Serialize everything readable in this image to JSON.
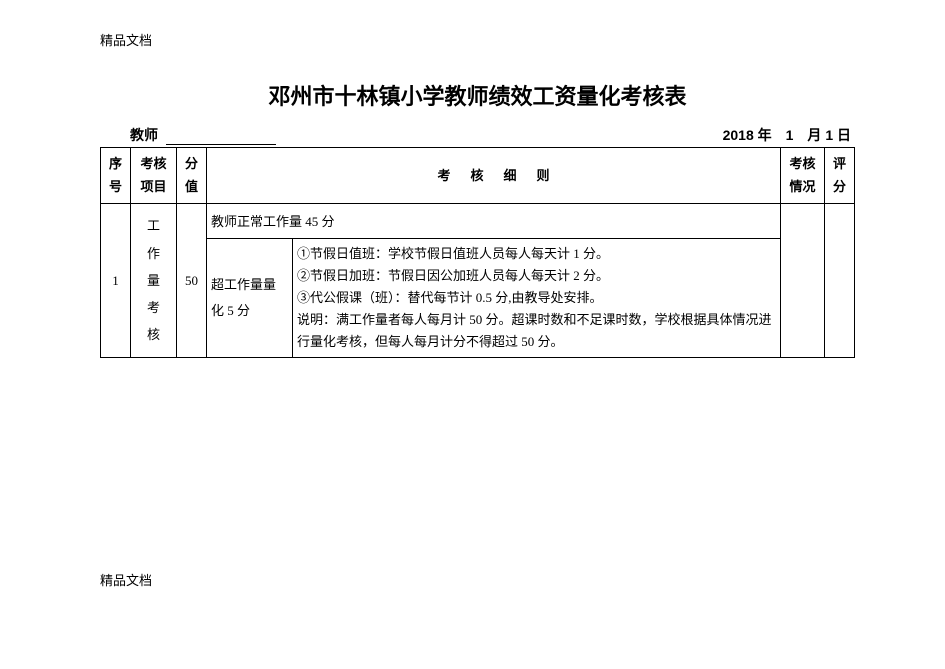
{
  "watermark": "精品文档",
  "title": "邓州市十林镇小学教师绩效工资量化考核表",
  "meta": {
    "teacher_label": "教师",
    "date": "2018 年　1　月 1 日"
  },
  "headers": {
    "seq": "序号",
    "item": "考核项目",
    "score": "分值",
    "rule": "考核细则",
    "status": "考核情况",
    "eval": "评分"
  },
  "rows": [
    {
      "seq": "1",
      "item": "工作量考核",
      "score": "50",
      "sub1": {
        "label": "教师正常工作量 45 分"
      },
      "sub2": {
        "label": "超工作量量化 5 分",
        "details": [
          "①节假日值班：学校节假日值班人员每人每天计 1 分。",
          "②节假日加班：节假日因公加班人员每人每天计 2 分。",
          "③代公假课（班）：替代每节计 0.5 分,由教导处安排。",
          "说明：满工作量者每人每月计 50 分。超课时数和不足课时数，学校根据具体情况进行量化考核，但每人每月计分不得超过 50 分。"
        ]
      },
      "status": "",
      "eval": ""
    }
  ]
}
